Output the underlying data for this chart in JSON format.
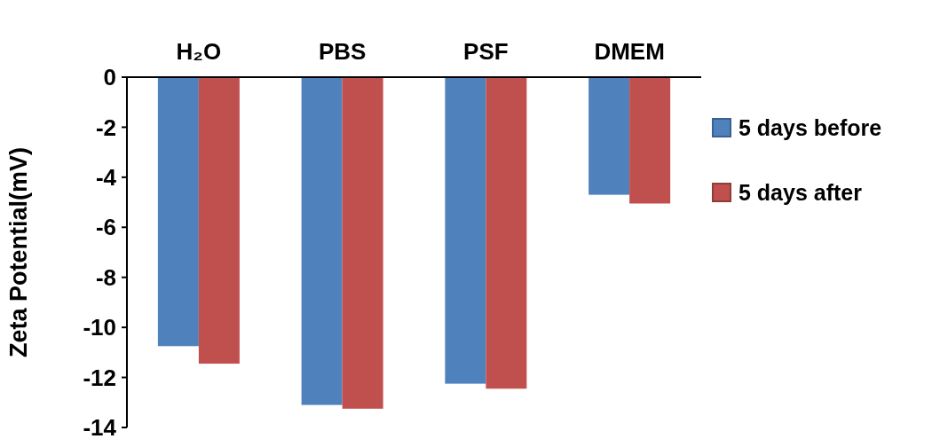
{
  "chart_data": {
    "type": "bar",
    "ylabel": "Zeta Potential(mV)",
    "categories": [
      "H₂O",
      "PBS",
      "PSF",
      "DMEM"
    ],
    "series": [
      {
        "name": "5 days before",
        "color": "#4f81bd",
        "values": [
          -10.75,
          -13.1,
          -12.25,
          -4.7
        ]
      },
      {
        "name": "5 days after",
        "color": "#c0504d",
        "values": [
          -11.45,
          -13.25,
          -12.45,
          -5.05
        ]
      }
    ],
    "ylim": [
      -14,
      0
    ],
    "yticks": [
      -14,
      -12,
      -10,
      -8,
      -6,
      -4,
      -2,
      0
    ],
    "grid": false,
    "legend": "right"
  }
}
